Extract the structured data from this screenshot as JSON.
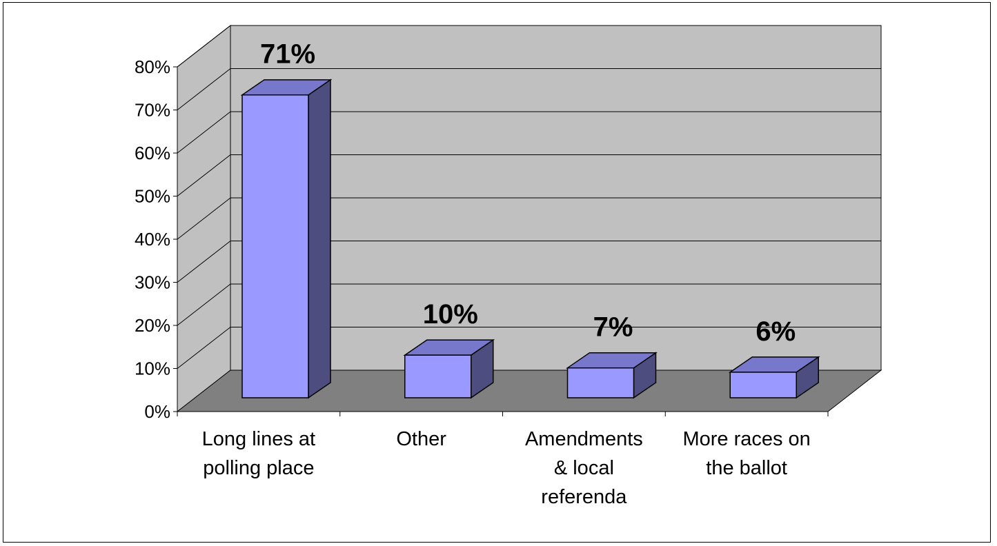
{
  "chart_data": {
    "type": "bar",
    "categories": [
      [
        "Long lines at",
        "polling place"
      ],
      [
        "Other"
      ],
      [
        "Amendments",
        "& local",
        "referenda"
      ],
      [
        "More races on",
        "the ballot"
      ]
    ],
    "values": [
      71,
      10,
      7,
      6
    ],
    "data_labels": [
      "71%",
      "10%",
      "7%",
      "6%"
    ],
    "y_ticks": [
      "0%",
      "10%",
      "20%",
      "30%",
      "40%",
      "50%",
      "60%",
      "70%",
      "80%"
    ],
    "ylim": [
      0,
      80
    ],
    "tick_step": 10,
    "grid": true,
    "three_d": true,
    "title": "",
    "xlabel": "",
    "ylabel": "",
    "colors": {
      "bar_front": "#9999ff",
      "bar_top": "#7777cc",
      "bar_side": "#4d4d80",
      "back_wall": "#c0c0c0",
      "floor": "#808080",
      "gridline": "#000000"
    }
  }
}
